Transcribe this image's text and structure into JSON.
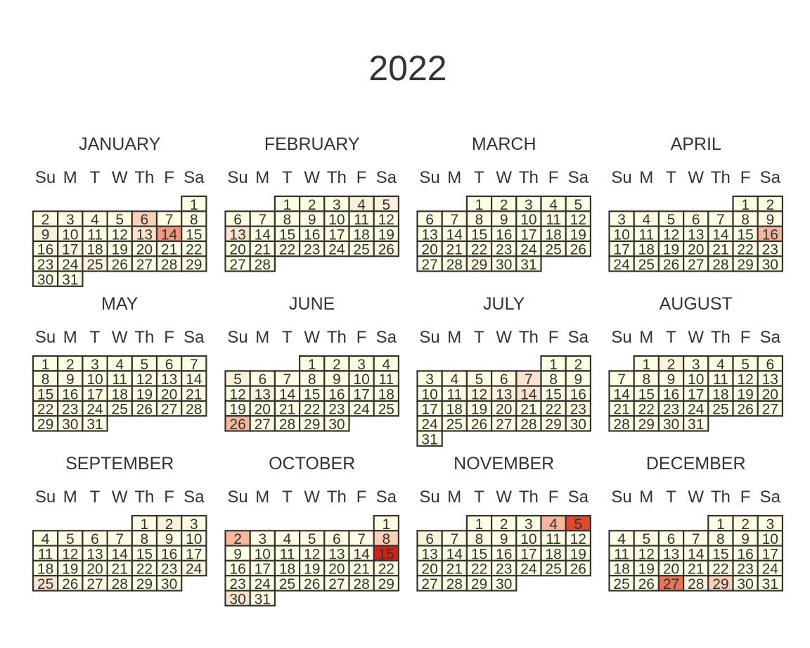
{
  "title": "2022",
  "weekday_labels": [
    "Su",
    "M",
    "T",
    "W",
    "Th",
    "F",
    "Sa"
  ],
  "colors": {
    "text": "#333333",
    "cell_border": "#333333",
    "scale": [
      "#FFFFE4",
      "#FEF2DA",
      "#FDE3CB",
      "#FBD0B7",
      "#F8B79C",
      "#F2987C",
      "#EB7455",
      "#E3482E",
      "#DA1F16"
    ]
  },
  "chart_data": {
    "type": "heatmap",
    "year": 2022,
    "title": "2022",
    "week_starts_on": "Sunday",
    "value_scale": "intensity 0-8 (light cream = 0, red = 8)",
    "months": [
      {
        "name": "JANUARY",
        "days": 31,
        "first_weekday": 6,
        "values": {
          "1": 0,
          "2": 0,
          "3": 0,
          "4": 0,
          "5": 0,
          "6": 3,
          "7": 0,
          "8": 0,
          "9": 1,
          "10": 0,
          "11": 0,
          "12": 0,
          "13": 2,
          "14": 5,
          "15": 0,
          "16": 0,
          "17": 1,
          "18": 0,
          "19": 0,
          "20": 0,
          "21": 0,
          "22": 0,
          "23": 0,
          "24": 0,
          "25": 1,
          "26": 0,
          "27": 0,
          "28": 0,
          "29": 0,
          "30": 0,
          "31": 0
        }
      },
      {
        "name": "FEBRUARY",
        "days": 28,
        "first_weekday": 2,
        "values": {
          "1": 0,
          "2": 0,
          "3": 0,
          "4": 1,
          "5": 1,
          "6": 0,
          "7": 0,
          "8": 0,
          "9": 0,
          "10": 0,
          "11": 0,
          "12": 0,
          "13": 2,
          "14": 0,
          "15": 0,
          "16": 0,
          "17": 0,
          "18": 0,
          "19": 0,
          "20": 0,
          "21": 0,
          "22": 1,
          "23": 0,
          "24": 0,
          "25": 0,
          "26": 1,
          "27": 0,
          "28": 0
        }
      },
      {
        "name": "MARCH",
        "days": 31,
        "first_weekday": 2,
        "values": {
          "1": 0,
          "2": 0,
          "3": 0,
          "4": 0,
          "5": 0,
          "6": 0,
          "7": 0,
          "8": 0,
          "9": 0,
          "10": 0,
          "11": 0,
          "12": 0,
          "13": 0,
          "14": 0,
          "15": 0,
          "16": 0,
          "17": 0,
          "18": 0,
          "19": 0,
          "20": 0,
          "21": 0,
          "22": 0,
          "23": 0,
          "24": 0,
          "25": 0,
          "26": 0,
          "27": 0,
          "28": 0,
          "29": 1,
          "30": 0,
          "31": 0
        }
      },
      {
        "name": "APRIL",
        "days": 30,
        "first_weekday": 5,
        "values": {
          "1": 0,
          "2": 0,
          "3": 0,
          "4": 0,
          "5": 0,
          "6": 0,
          "7": 0,
          "8": 0,
          "9": 0,
          "10": 0,
          "11": 0,
          "12": 0,
          "13": 0,
          "14": 0,
          "15": 0,
          "16": 4,
          "17": 0,
          "18": 0,
          "19": 0,
          "20": 0,
          "21": 0,
          "22": 0,
          "23": 0,
          "24": 0,
          "25": 0,
          "26": 0,
          "27": 0,
          "28": 0,
          "29": 0,
          "30": 0
        }
      },
      {
        "name": "MAY",
        "days": 31,
        "first_weekday": 0,
        "values": {
          "1": 0,
          "2": 0,
          "3": 0,
          "4": 0,
          "5": 0,
          "6": 0,
          "7": 0,
          "8": 0,
          "9": 0,
          "10": 0,
          "11": 0,
          "12": 0,
          "13": 0,
          "14": 0,
          "15": 1,
          "16": 0,
          "17": 0,
          "18": 0,
          "19": 0,
          "20": 0,
          "21": 0,
          "22": 0,
          "23": 0,
          "24": 0,
          "25": 0,
          "26": 0,
          "27": 0,
          "28": 0,
          "29": 0,
          "30": 0,
          "31": 0
        }
      },
      {
        "name": "JUNE",
        "days": 30,
        "first_weekday": 3,
        "values": {
          "1": 0,
          "2": 0,
          "3": 0,
          "4": 0,
          "5": 1,
          "6": 0,
          "7": 0,
          "8": 0,
          "9": 0,
          "10": 0,
          "11": 0,
          "12": 0,
          "13": 1,
          "14": 0,
          "15": 0,
          "16": 0,
          "17": 0,
          "18": 0,
          "19": 0,
          "20": 0,
          "21": 0,
          "22": 0,
          "23": 0,
          "24": 0,
          "25": 0,
          "26": 4,
          "27": 0,
          "28": 0,
          "29": 0,
          "30": 0
        }
      },
      {
        "name": "JULY",
        "days": 31,
        "first_weekday": 5,
        "values": {
          "1": 0,
          "2": 0,
          "3": 0,
          "4": 0,
          "5": 0,
          "6": 0,
          "7": 2,
          "8": 0,
          "9": 0,
          "10": 0,
          "11": 0,
          "12": 1,
          "13": 1,
          "14": 2,
          "15": 0,
          "16": 0,
          "17": 0,
          "18": 0,
          "19": 0,
          "20": 0,
          "21": 0,
          "22": 0,
          "23": 1,
          "24": 0,
          "25": 0,
          "26": 0,
          "27": 0,
          "28": 0,
          "29": 0,
          "30": 0,
          "31": 0
        }
      },
      {
        "name": "AUGUST",
        "days": 31,
        "first_weekday": 1,
        "values": {
          "1": 0,
          "2": 1,
          "3": 0,
          "4": 0,
          "5": 0,
          "6": 0,
          "7": 0,
          "8": 0,
          "9": 0,
          "10": 0,
          "11": 0,
          "12": 0,
          "13": 0,
          "14": 0,
          "15": 0,
          "16": 0,
          "17": 0,
          "18": 0,
          "19": 0,
          "20": 0,
          "21": 0,
          "22": 0,
          "23": 0,
          "24": 0,
          "25": 0,
          "26": 0,
          "27": 0,
          "28": 0,
          "29": 0,
          "30": 0,
          "31": 0
        }
      },
      {
        "name": "SEPTEMBER",
        "days": 30,
        "first_weekday": 4,
        "values": {
          "1": 0,
          "2": 1,
          "3": 0,
          "4": 0,
          "5": 0,
          "6": 0,
          "7": 0,
          "8": 0,
          "9": 0,
          "10": 0,
          "11": 0,
          "12": 0,
          "13": 0,
          "14": 0,
          "15": 0,
          "16": 0,
          "17": 0,
          "18": 0,
          "19": 0,
          "20": 0,
          "21": 0,
          "22": 0,
          "23": 0,
          "24": 1,
          "25": 2,
          "26": 0,
          "27": 0,
          "28": 0,
          "29": 0,
          "30": 0
        }
      },
      {
        "name": "OCTOBER",
        "days": 31,
        "first_weekday": 6,
        "values": {
          "1": 0,
          "2": 4,
          "3": 0,
          "4": 0,
          "5": 0,
          "6": 0,
          "7": 0,
          "8": 3,
          "9": 0,
          "10": 0,
          "11": 0,
          "12": 0,
          "13": 0,
          "14": 0,
          "15": 8,
          "16": 0,
          "17": 0,
          "18": 0,
          "19": 0,
          "20": 0,
          "21": 0,
          "22": 0,
          "23": 0,
          "24": 0,
          "25": 0,
          "26": 0,
          "27": 0,
          "28": 0,
          "29": 0,
          "30": 2,
          "31": 0
        }
      },
      {
        "name": "NOVEMBER",
        "days": 30,
        "first_weekday": 2,
        "values": {
          "1": 0,
          "2": 0,
          "3": 0,
          "4": 4,
          "5": 7,
          "6": 1,
          "7": 0,
          "8": 0,
          "9": 0,
          "10": 0,
          "11": 0,
          "12": 0,
          "13": 0,
          "14": 0,
          "15": 0,
          "16": 0,
          "17": 0,
          "18": 0,
          "19": 0,
          "20": 0,
          "21": 0,
          "22": 0,
          "23": 0,
          "24": 0,
          "25": 0,
          "26": 0,
          "27": 0,
          "28": 0,
          "29": 0,
          "30": 0
        }
      },
      {
        "name": "DECEMBER",
        "days": 31,
        "first_weekday": 4,
        "values": {
          "1": 0,
          "2": 0,
          "3": 0,
          "4": 0,
          "5": 0,
          "6": 0,
          "7": 0,
          "8": 0,
          "9": 0,
          "10": 0,
          "11": 0,
          "12": 0,
          "13": 0,
          "14": 0,
          "15": 0,
          "16": 0,
          "17": 0,
          "18": 0,
          "19": 0,
          "20": 0,
          "21": 0,
          "22": 0,
          "23": 0,
          "24": 0,
          "25": 0,
          "26": 0,
          "27": 6,
          "28": 1,
          "29": 3,
          "30": 0,
          "31": 0
        }
      }
    ]
  }
}
